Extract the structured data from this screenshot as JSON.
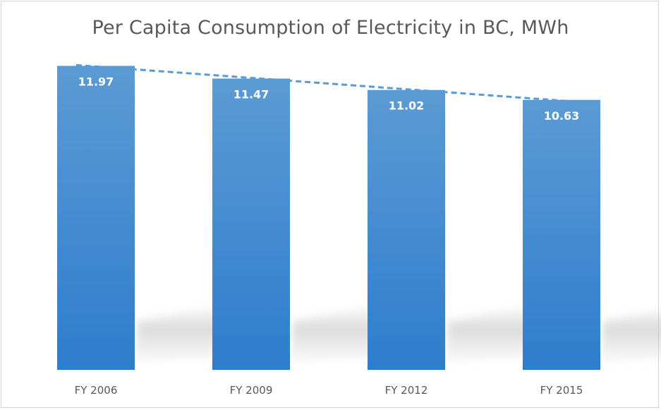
{
  "chart_data": {
    "type": "bar",
    "title": "Per Capita Consumption of Electricity in BC, MWh",
    "categories": [
      "FY 2006",
      "FY 2009",
      "FY 2012",
      "FY 2015"
    ],
    "series": [
      {
        "values": [
          11.97,
          11.47,
          11.02,
          10.63
        ]
      }
    ],
    "data_labels": [
      "11.97",
      "11.47",
      "11.02",
      "10.63"
    ],
    "trendline": {
      "type": "linear",
      "style": "dashed"
    },
    "xlabel": "",
    "ylabel": "",
    "grid": false,
    "legend": "none",
    "colors": {
      "bar_top": "#5b9bd5",
      "bar_bottom": "#2e7dcc",
      "trendline": "#5b9bd5",
      "text": "#595959"
    }
  }
}
